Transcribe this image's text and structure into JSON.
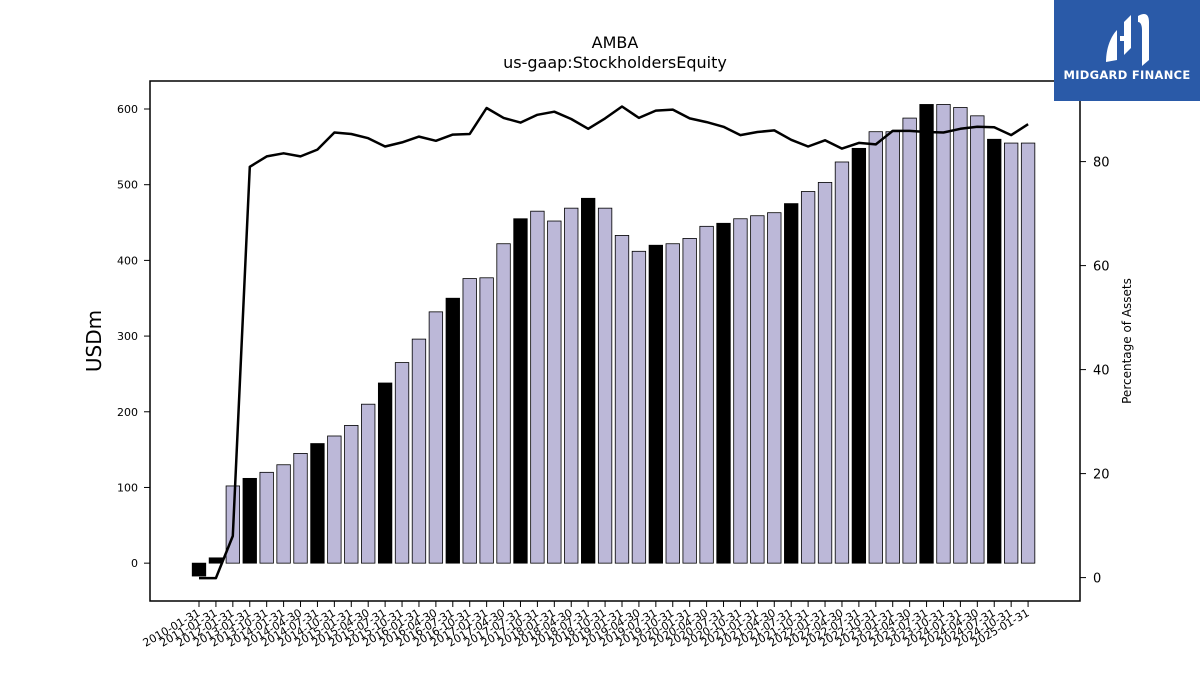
{
  "brand": {
    "name": "MIDGARD FINANCE",
    "bg_color": "#2a5aa8"
  },
  "chart_data": {
    "type": "bar",
    "title": "AMBA",
    "subtitle": "us-gaap:StockholdersEquity",
    "ylabel": "USDm",
    "y2label": "Percentage of Assets",
    "ylim": [
      -50,
      637
    ],
    "y2lim": [
      -4.5,
      95.5
    ],
    "yticks": [
      0,
      100,
      200,
      300,
      400,
      500,
      600
    ],
    "y2ticks": [
      0,
      20,
      40,
      60,
      80
    ],
    "bar_fill": "#bcb8d8",
    "bar_highlight_fill": "#000000",
    "line_color": "#000000",
    "categories": [
      "2010-01-31",
      "2011-01-31",
      "2012-01-31",
      "2013-01-31",
      "2013-10-31",
      "2014-01-31",
      "2014-04-30",
      "2014-07-31",
      "2014-10-31",
      "2015-01-31",
      "2015-04-30",
      "2015-07-31",
      "2015-10-31",
      "2016-01-31",
      "2016-04-30",
      "2016-07-31",
      "2016-10-31",
      "2017-01-31",
      "2017-04-30",
      "2017-07-31",
      "2017-10-31",
      "2018-01-31",
      "2018-04-30",
      "2018-07-31",
      "2018-10-31",
      "2019-01-31",
      "2019-04-30",
      "2019-07-31",
      "2019-10-31",
      "2020-01-31",
      "2020-04-30",
      "2020-07-31",
      "2020-10-31",
      "2021-01-31",
      "2021-04-30",
      "2021-07-31",
      "2021-10-31",
      "2022-01-31",
      "2022-04-30",
      "2022-07-31",
      "2022-10-31",
      "2023-01-31",
      "2023-04-30",
      "2023-07-31",
      "2023-10-31",
      "2024-01-31",
      "2024-04-30",
      "2024-07-31",
      "2024-10-31",
      "2025-01-31"
    ],
    "values": [
      -17,
      7,
      102,
      112,
      120,
      130,
      145,
      158,
      168,
      182,
      210,
      238,
      265,
      296,
      332,
      350,
      376,
      377,
      422,
      455,
      465,
      452,
      469,
      482,
      469,
      433,
      412,
      420,
      422,
      429,
      445,
      449,
      455,
      459,
      463,
      475,
      491,
      503,
      530,
      548,
      570,
      570,
      588,
      606,
      606,
      602,
      591,
      560,
      555,
      555
    ],
    "highlight": [
      true,
      true,
      false,
      true,
      false,
      false,
      false,
      true,
      false,
      false,
      false,
      true,
      false,
      false,
      false,
      true,
      false,
      false,
      false,
      true,
      false,
      false,
      false,
      true,
      false,
      false,
      false,
      true,
      false,
      false,
      false,
      true,
      false,
      false,
      false,
      true,
      false,
      false,
      false,
      true,
      false,
      false,
      false,
      true,
      false,
      false,
      false,
      true,
      false,
      false
    ],
    "line_values": [
      -0.1,
      -0.1,
      8,
      79,
      81,
      81.6,
      81,
      82.3,
      85.6,
      85.3,
      84.5,
      82.9,
      83.7,
      84.8,
      84,
      85.2,
      85.3,
      90.3,
      88.4,
      87.5,
      89,
      89.6,
      88.2,
      86.3,
      88.3,
      90.6,
      88.4,
      89.8,
      90,
      88.3,
      87.6,
      86.7,
      85.1,
      85.7,
      86,
      84.2,
      82.9,
      84.1,
      82.5,
      83.6,
      83.3,
      85.9,
      85.9,
      85.7,
      85.6,
      86.3,
      86.7,
      86.6,
      85.1,
      87.2
    ]
  }
}
